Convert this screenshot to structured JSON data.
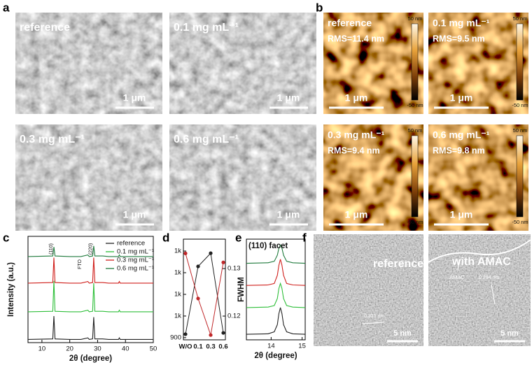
{
  "panels": {
    "a": {
      "label": "a",
      "images": [
        {
          "label": "reference",
          "scale_bar": "1 μm"
        },
        {
          "label": "0.1 mg mL⁻¹",
          "scale_bar": "1 μm"
        },
        {
          "label": "0.3 mg mL⁻¹",
          "scale_bar": "1 μm"
        },
        {
          "label": "0.6 mg mL⁻¹",
          "scale_bar": "1 μm"
        }
      ]
    },
    "b": {
      "label": "b",
      "images": [
        {
          "label": "reference",
          "rms": "RMS=11.4 nm",
          "scale_bar": "1 μm",
          "colorbar_max": "50 nm",
          "colorbar_min": "-50 nm"
        },
        {
          "label": "0.1 mg mL⁻¹",
          "rms": "RMS=9.5 nm",
          "scale_bar": "1 μm",
          "colorbar_max": "50 nm",
          "colorbar_min": "-50 nm"
        },
        {
          "label": "0.3 mg mL⁻¹",
          "rms": "RMS=9.4 nm",
          "scale_bar": "1 μm",
          "colorbar_max": "50 nm",
          "colorbar_min": "-50 nm"
        },
        {
          "label": "0.6 mg mL⁻¹",
          "rms": "RMS=9.8 nm",
          "scale_bar": "1 μm",
          "colorbar_max": "50 nm",
          "colorbar_min": "-50 nm"
        }
      ]
    },
    "f": {
      "label": "f",
      "images": [
        {
          "label": "reference",
          "spacing": "0.321 nm",
          "scale_bar": "5 nm"
        },
        {
          "label": "with AMAC",
          "annotation": "AMAC",
          "spacing": "0.294 nm",
          "scale_bar": "5 nm"
        }
      ]
    }
  },
  "chart_data": [
    {
      "type": "line",
      "panel_label": "c",
      "xlabel": "2θ (degree)",
      "ylabel": "Intensity (a.u.)",
      "x": [
        5,
        13.9,
        14.3,
        14.7,
        20,
        24,
        26.5,
        27,
        28.2,
        28.6,
        29,
        31.8,
        34,
        37.5,
        37.8,
        38.1,
        43,
        50
      ],
      "series": [
        {
          "name": "reference",
          "color": "#222222",
          "values": [
            3,
            3.5,
            25,
            3.5,
            3,
            3,
            4.5,
            3,
            3.5,
            24,
            3.5,
            3.5,
            3,
            3,
            4.5,
            3,
            3,
            3
          ]
        },
        {
          "name": "0.1 mg mL⁻¹",
          "color": "#2fbf3a",
          "values": [
            29,
            29.5,
            58,
            29.5,
            29,
            29,
            30.5,
            29,
            29.5,
            56,
            29.5,
            29.5,
            29,
            29,
            30.5,
            29,
            29,
            29
          ]
        },
        {
          "name": "0.3 mg mL⁻¹",
          "color": "#d0201c",
          "values": [
            56,
            56.5,
            80,
            56.5,
            56,
            56,
            57.5,
            56,
            56.5,
            80,
            56.5,
            56.5,
            56,
            56,
            57.5,
            56,
            56,
            56
          ]
        },
        {
          "name": "0.6 mg mL⁻¹",
          "color": "#1f7a3c",
          "values": [
            81,
            81.5,
            90,
            81.5,
            81,
            81,
            82.5,
            81,
            81.5,
            91,
            81.5,
            81.5,
            81,
            81,
            82.5,
            81,
            81,
            81
          ]
        }
      ],
      "annotations": [
        "(110)",
        "FTO",
        "(220)"
      ],
      "xlim": [
        5,
        50
      ],
      "xticks": [
        10,
        20,
        30,
        40,
        50
      ],
      "ylim": [
        0,
        100
      ],
      "legend": "upper right"
    },
    {
      "type": "dual",
      "panel_label": "d",
      "y2label": "FWHM",
      "categories": [
        "W/O",
        "0.1",
        "0.3",
        "0.6"
      ],
      "series": [
        {
          "color": "#222222",
          "values": [
            916,
            1229,
            1290,
            922
          ]
        },
        {
          "color": "#c0282a",
          "axis": "y2",
          "values": [
            0.1332,
            0.1237,
            0.116,
            0.1313
          ]
        }
      ],
      "ylim": [
        890,
        1355
      ],
      "yticks": [
        900,
        {
          "value": 1000,
          "label": "1k"
        },
        {
          "value": 1100,
          "label": "1k"
        },
        {
          "value": 1200,
          "label": "1k"
        },
        {
          "value": 1300,
          "label": "1k"
        }
      ],
      "y2lim": [
        0.115,
        0.1362
      ],
      "y2ticks": [
        0.12,
        0.13
      ]
    },
    {
      "type": "line",
      "panel_label": "e",
      "title": "(110) facet",
      "xlabel": "2θ (degree)",
      "x": [
        13.2,
        13.9,
        14.1,
        14.2,
        14.25,
        14.3,
        14.35,
        14.4,
        14.5,
        14.7,
        15.1
      ],
      "series": [
        {
          "color": "#222222",
          "values": [
            5.5,
            6,
            8,
            15,
            26,
            32,
            26,
            15,
            8,
            6,
            5.5
          ]
        },
        {
          "color": "#2fbf3a",
          "values": [
            32,
            32.5,
            34,
            41,
            51,
            56,
            51,
            41,
            34,
            32.5,
            32
          ]
        },
        {
          "color": "#d0201c",
          "values": [
            54,
            54.5,
            56,
            64,
            74,
            80,
            74,
            64,
            56,
            54.5,
            54
          ]
        },
        {
          "color": "#1f7a3c",
          "values": [
            76,
            76.5,
            78,
            84,
            91,
            94,
            91,
            84,
            78,
            76.5,
            76
          ]
        }
      ],
      "xlim": [
        13.2,
        15.1
      ],
      "xticks": [
        14,
        15
      ],
      "ylim": [
        0,
        100
      ]
    }
  ]
}
